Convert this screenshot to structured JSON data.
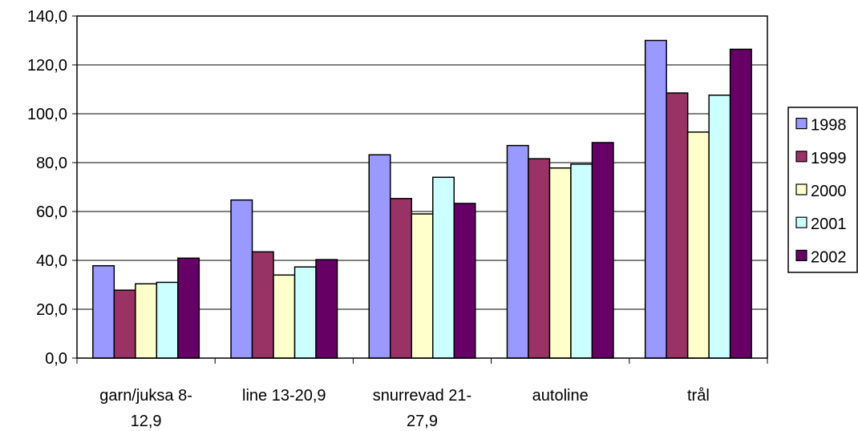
{
  "chart_data": {
    "type": "bar",
    "title": "",
    "xlabel": "",
    "ylabel": "",
    "ylim": [
      0,
      140
    ],
    "yticks": [
      "0,0",
      "20,0",
      "40,0",
      "60,0",
      "80,0",
      "100,0",
      "120,0",
      "140,0"
    ],
    "categories": [
      [
        "garn/juksa 8-",
        "12,9"
      ],
      [
        "line 13-20,9"
      ],
      [
        "snurrevad 21-",
        "27,9"
      ],
      [
        "autoline"
      ],
      [
        "trål"
      ]
    ],
    "series": [
      {
        "name": "1998",
        "color": "#9999ff",
        "values": [
          37.8,
          64.7,
          83.2,
          87.0,
          130.0
        ]
      },
      {
        "name": "1999",
        "color": "#993366",
        "values": [
          27.8,
          43.5,
          65.3,
          81.6,
          108.5
        ]
      },
      {
        "name": "2000",
        "color": "#ffffcc",
        "values": [
          30.4,
          34.0,
          59.0,
          77.8,
          92.5
        ]
      },
      {
        "name": "2001",
        "color": "#ccffff",
        "values": [
          31.0,
          37.3,
          74.0,
          79.4,
          107.6
        ]
      },
      {
        "name": "2002",
        "color": "#660066",
        "values": [
          40.9,
          40.3,
          63.3,
          88.2,
          126.4
        ]
      }
    ],
    "grid": true,
    "legend_position": "right"
  }
}
